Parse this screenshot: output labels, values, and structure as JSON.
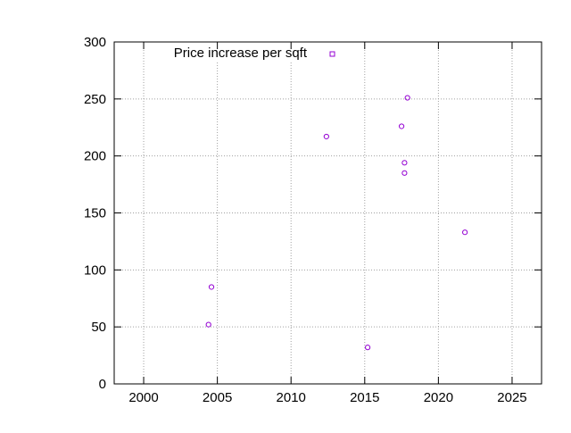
{
  "chart_data": {
    "type": "scatter",
    "title": "",
    "xlabel": "",
    "ylabel": "",
    "xlim": [
      1998,
      2027
    ],
    "ylim": [
      0,
      300
    ],
    "x_ticks": [
      2000,
      2005,
      2010,
      2015,
      2020,
      2025
    ],
    "y_ticks": [
      0,
      50,
      100,
      150,
      200,
      250,
      300
    ],
    "grid": true,
    "legend_position": "top-left",
    "series": [
      {
        "name": "Price increase per sqft",
        "color": "#9400d3",
        "marker": "open-circle",
        "points": [
          {
            "x": 2004.4,
            "y": 52
          },
          {
            "x": 2004.6,
            "y": 85
          },
          {
            "x": 2012.4,
            "y": 217
          },
          {
            "x": 2015.2,
            "y": 32
          },
          {
            "x": 2017.5,
            "y": 226
          },
          {
            "x": 2017.7,
            "y": 194
          },
          {
            "x": 2017.7,
            "y": 185
          },
          {
            "x": 2017.9,
            "y": 251
          },
          {
            "x": 2021.8,
            "y": 133
          }
        ]
      }
    ]
  }
}
